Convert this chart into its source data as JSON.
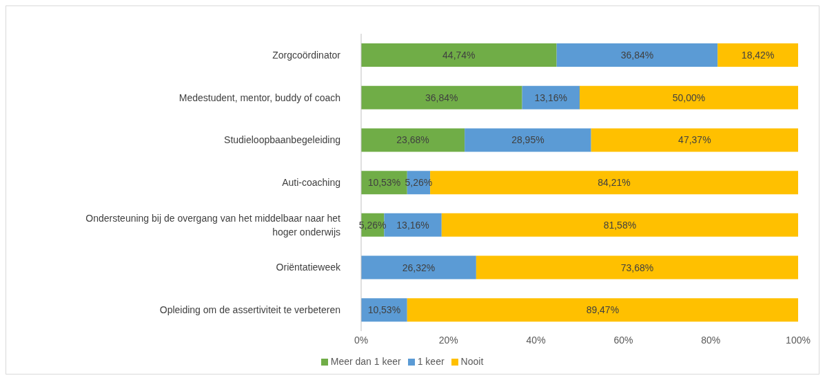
{
  "chart_data": {
    "type": "bar",
    "orientation": "horizontal",
    "stacked": true,
    "legend": "bottom",
    "categories": [
      "Zorgcoördinator",
      "Medestudent, mentor, buddy of coach",
      "Studieloopbaanbegeleiding",
      "Auti-coaching",
      "Ondersteuning bij de overgang van het middelbaar naar het hoger onderwijs",
      "Oriëntatieweek",
      "Opleiding om de assertiviteit te verbeteren"
    ],
    "series": [
      {
        "name": "Meer dan 1 keer",
        "color": "#70ad47",
        "values": [
          44.74,
          36.84,
          23.68,
          10.53,
          5.26,
          0,
          0
        ],
        "value_labels": [
          "44,74%",
          "36,84%",
          "23,68%",
          "10,53%",
          "5,26%",
          null,
          null
        ]
      },
      {
        "name": "1 keer",
        "color": "#5b9bd5",
        "values": [
          36.84,
          13.16,
          28.95,
          5.26,
          13.16,
          26.32,
          10.53
        ],
        "value_labels": [
          "36,84%",
          "13,16%",
          "28,95%",
          "5,26%",
          "13,16%",
          "26,32%",
          "10,53%"
        ]
      },
      {
        "name": "Nooit",
        "color": "#ffc000",
        "values": [
          18.42,
          50.0,
          47.37,
          84.21,
          81.58,
          73.68,
          89.47
        ],
        "value_labels": [
          "18,42%",
          "50,00%",
          "47,37%",
          "84,21%",
          "81,58%",
          "73,68%",
          "89,47%"
        ]
      }
    ],
    "xlim": [
      0,
      100
    ],
    "xticks": [
      {
        "value": 0,
        "label": "0%"
      },
      {
        "value": 20,
        "label": "20%"
      },
      {
        "value": 40,
        "label": "40%"
      },
      {
        "value": 60,
        "label": "60%"
      },
      {
        "value": 80,
        "label": "80%"
      },
      {
        "value": 100,
        "label": "100%"
      }
    ]
  }
}
